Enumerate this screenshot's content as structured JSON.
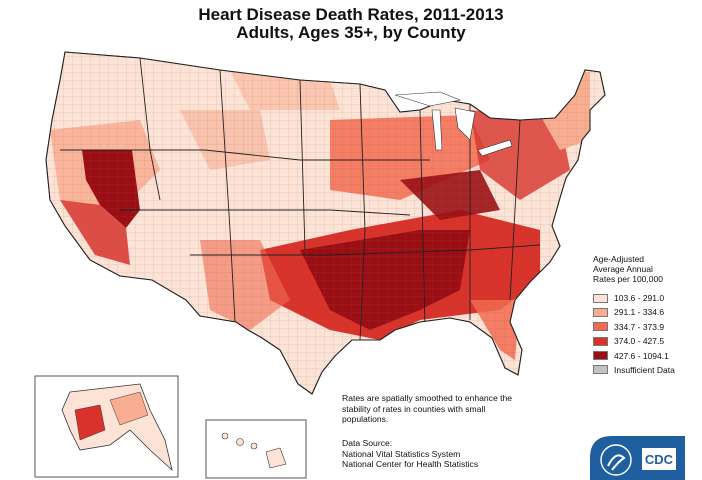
{
  "title": {
    "line1": "Heart Disease Death Rates, 2011-2013",
    "line2": "Adults, Ages 35+, by County"
  },
  "legend": {
    "heading": [
      "Age-Adjusted",
      "Average Annual",
      "Rates per 100,000"
    ],
    "classes": [
      {
        "label": "103.6 - 291.0",
        "color": "#fde3d6"
      },
      {
        "label": "291.1 - 334.6",
        "color": "#f9ad91"
      },
      {
        "label": "334.7 - 373.9",
        "color": "#f26b50"
      },
      {
        "label": "374.0 - 427.5",
        "color": "#d8322b"
      },
      {
        "label": "427.6 - 1094.1",
        "color": "#9b0f14"
      },
      {
        "label": "Insufficient Data",
        "color": "#c2c2c2"
      }
    ]
  },
  "note": "Rates are spatially smoothed to enhance the stability of rates in counties with small populations.",
  "source": {
    "label": "Data Source:",
    "lines": [
      "National Vital Statistics System",
      "National Center for Health Statistics"
    ]
  },
  "logo": {
    "text": "CDC",
    "color": "#1f5fa0"
  }
}
